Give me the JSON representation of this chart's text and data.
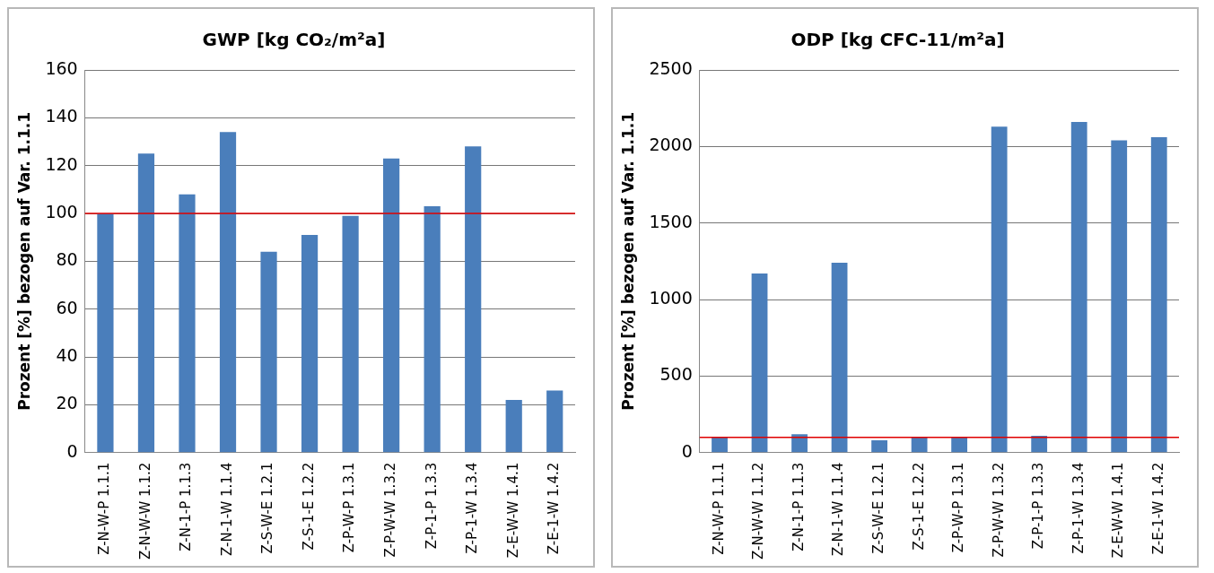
{
  "chart_data": [
    {
      "type": "bar",
      "title": "GWP [kg CO₂/m²a]",
      "ylabel": "Prozent [%] bezogen auf Var. 1.1.1",
      "categories": [
        "Z-N-W-P 1.1.1",
        "Z-N-W-W 1.1.2",
        "Z-N-1-P 1.1.3",
        "Z-N-1-W 1.1.4",
        "Z-S-W-E 1.2.1",
        "Z-S-1-E 1.2.2",
        "Z-P-W-P 1.3.1",
        "Z-P-W-W 1.3.2",
        "Z-P-1-P 1.3.3",
        "Z-P-1-W 1.3.4",
        "Z-E-W-W 1.4.1",
        "Z-E-1-W 1.4.2"
      ],
      "values": [
        100,
        125,
        108,
        134,
        84,
        91,
        99,
        123,
        103,
        128,
        22,
        26
      ],
      "color": "#4a7ebb",
      "ylim": [
        0,
        160
      ],
      "yticks": [
        0,
        20,
        40,
        60,
        80,
        100,
        120,
        140,
        160
      ],
      "grid": "y",
      "legend": false,
      "ref_lines": [
        {
          "axis": "y",
          "value": 100,
          "color": "#e00000"
        }
      ]
    },
    {
      "type": "bar",
      "title": "ODP [kg CFC-11/m²a]",
      "ylabel": "Prozent [%] bezogen auf Var. 1.1.1",
      "categories": [
        "Z-N-W-P 1.1.1",
        "Z-N-W-W 1.1.2",
        "Z-N-1-P 1.1.3",
        "Z-N-1-W 1.1.4",
        "Z-S-W-E 1.2.1",
        "Z-S-1-E 1.2.2",
        "Z-P-W-P 1.3.1",
        "Z-P-W-W 1.3.2",
        "Z-P-1-P 1.3.3",
        "Z-P-1-W 1.3.4",
        "Z-E-W-W 1.4.1",
        "Z-E-1-W 1.4.2"
      ],
      "values": [
        100,
        1170,
        120,
        1240,
        80,
        100,
        100,
        2130,
        110,
        2160,
        2040,
        2060
      ],
      "color": "#4a7ebb",
      "ylim": [
        0,
        2500
      ],
      "yticks": [
        0,
        500,
        1000,
        1500,
        2000,
        2500
      ],
      "grid": "y",
      "legend": false,
      "ref_lines": [
        {
          "axis": "y",
          "value": 100,
          "color": "#e00000"
        }
      ]
    }
  ]
}
